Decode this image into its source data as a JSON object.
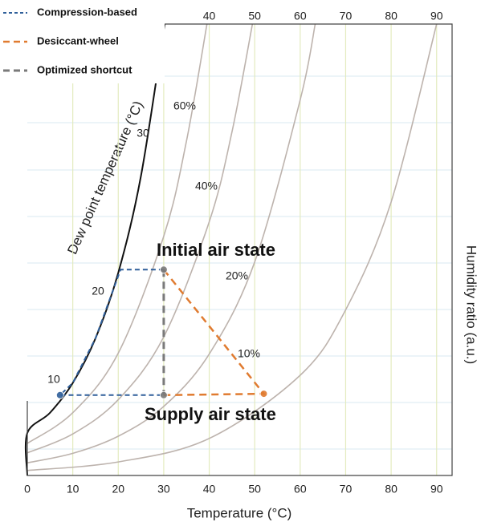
{
  "chart_data": {
    "type": "line",
    "xlabel": "Temperature (°C)",
    "ylabel": "Humidity ratio (a.u.)",
    "dew_point_label": "Dew point temperature (°C)",
    "xlim": [
      0,
      93.4
    ],
    "ylim": [
      0,
      10
    ],
    "xticks": [
      0,
      10,
      20,
      30,
      40,
      50,
      60,
      70,
      80,
      90
    ],
    "top_ticks": [
      40,
      50,
      60,
      70,
      80,
      90
    ],
    "grid": true,
    "legend": "top-left",
    "saturation": {
      "color": "#111111",
      "x": [
        0,
        0,
        5,
        10,
        15,
        20,
        25,
        30.2
      ],
      "values": [
        0,
        0.94,
        1.39,
        2.05,
        3.04,
        4.49,
        6.64,
        10
      ]
    },
    "dew_point_ticks": [
      10,
      20,
      30
    ],
    "rh_curves": [
      {
        "name": "60%",
        "color": "#bdb3ad",
        "x": [
          0,
          10,
          20,
          30,
          35,
          39.5
        ],
        "values": [
          0.71,
          1.39,
          2.71,
          5.3,
          7.41,
          10
        ]
      },
      {
        "name": "40%",
        "color": "#bdb3ad",
        "x": [
          0,
          10,
          20,
          30,
          40,
          45,
          49.5
        ],
        "values": [
          0.5,
          0.92,
          1.68,
          3.07,
          5.62,
          7.61,
          10
        ]
      },
      {
        "name": "20%",
        "color": "#bdb3ad",
        "x": [
          0,
          10,
          20,
          30,
          40,
          50,
          60,
          63.3
        ],
        "values": [
          0.28,
          0.49,
          0.87,
          1.53,
          2.69,
          4.73,
          8.32,
          10
        ]
      },
      {
        "name": "10%",
        "color": "#bdb3ad",
        "x": [
          0,
          20,
          40,
          60,
          70,
          80,
          90
        ],
        "values": [
          0.11,
          0.3,
          0.82,
          2.22,
          3.67,
          6.06,
          10
        ]
      }
    ],
    "series": [
      {
        "name": "Compression-based",
        "color": "#2f5f9a",
        "line_width": 2,
        "x": [
          30,
          20.5,
          15,
          10,
          7.2,
          30
        ],
        "values": [
          4.56,
          4.56,
          3.04,
          2.05,
          1.78,
          1.78
        ]
      },
      {
        "name": "Desiccant-wheel",
        "color": "#e07b30",
        "line_width": 2.5,
        "x": [
          30,
          52,
          30
        ],
        "values": [
          4.56,
          1.81,
          1.78
        ]
      },
      {
        "name": "Optimized shortcut",
        "color": "#7a7a7a",
        "line_width": 3,
        "x": [
          30,
          30
        ],
        "values": [
          4.56,
          1.78
        ]
      }
    ],
    "annotations": [
      {
        "text": "Initial air state"
      },
      {
        "text": "Supply air state"
      }
    ]
  }
}
